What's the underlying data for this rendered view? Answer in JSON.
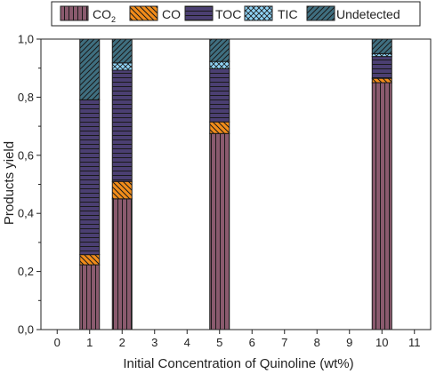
{
  "chart_data": {
    "type": "bar",
    "stacked": true,
    "xlabel": "Initial Concentration of Quinoline (wt%)",
    "ylabel": "Products yield",
    "x_ticks": [
      "0",
      "1",
      "2",
      "3",
      "4",
      "5",
      "6",
      "7",
      "8",
      "9",
      "10",
      "11"
    ],
    "y_ticks": [
      "0,0",
      "0,2",
      "0,4",
      "0,6",
      "0,8",
      "1,0"
    ],
    "xlim": [
      -0.5,
      11.5
    ],
    "ylim": [
      0,
      1.0
    ],
    "categories": [
      1,
      2,
      5,
      10
    ],
    "series": [
      {
        "name": "CO",
        "name_sub": "2",
        "key": "co2",
        "color": "#8a5a6e",
        "pattern": "vertical",
        "values": [
          0.223,
          0.45,
          0.675,
          0.85
        ]
      },
      {
        "name": "CO",
        "key": "co",
        "color": "#f28c1a",
        "pattern": "diag-down",
        "values": [
          0.035,
          0.06,
          0.04,
          0.015
        ]
      },
      {
        "name": "TOC",
        "key": "toc",
        "color": "#4b3f72",
        "pattern": "horizontal",
        "values": [
          0.533,
          0.383,
          0.183,
          0.075
        ]
      },
      {
        "name": "TIC",
        "key": "tic",
        "color": "#8fd3f5",
        "pattern": "cross",
        "values": [
          0,
          0.025,
          0.025,
          0.01
        ]
      },
      {
        "name": "Undetected",
        "key": "und",
        "color": "#3f6f80",
        "pattern": "diag-up",
        "values": [
          0.209,
          0.082,
          0.077,
          0.05
        ]
      }
    ],
    "legend_position": "top",
    "grid": false
  }
}
